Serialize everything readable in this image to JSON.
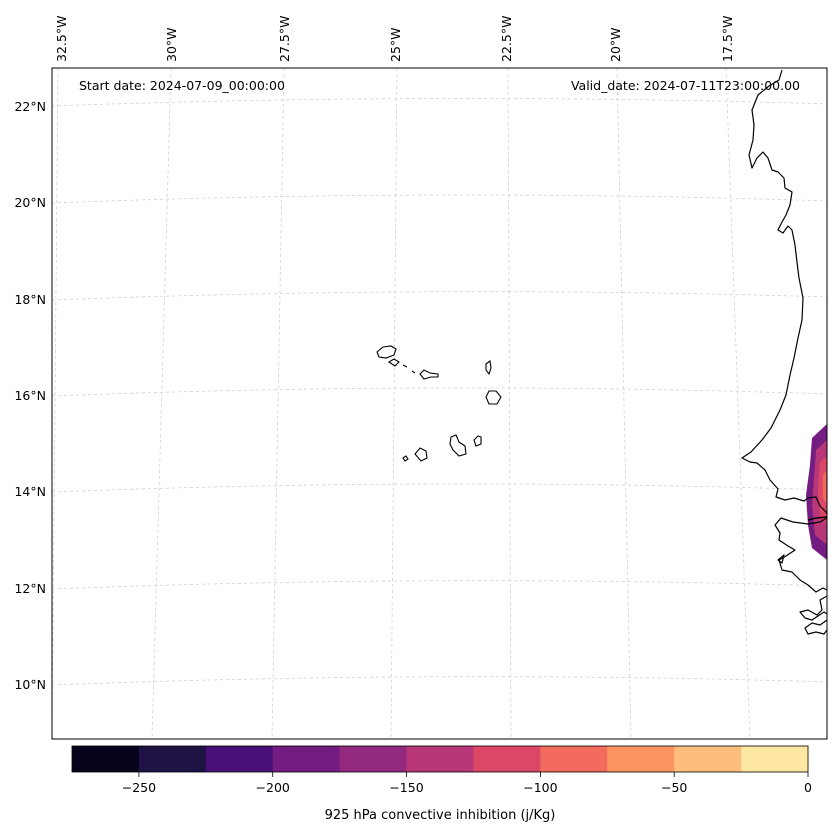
{
  "map": {
    "start_date": "Start date: 2024-07-09_00:00:00",
    "valid_date": "Valid_date: 2024-07-11T23:00:00.00",
    "lon_labels": [
      "32.5°W",
      "30°W",
      "27.5°W",
      "25°W",
      "22.5°W",
      "20°W",
      "17.5°W"
    ],
    "lat_labels": [
      "22°N",
      "20°N",
      "18°N",
      "16°N",
      "14°N",
      "12°N",
      "10°N"
    ]
  },
  "colorbar": {
    "title": "925 hPa convective inhibition (j/Kg)",
    "ticks": [
      "−250",
      "−200",
      "−150",
      "−100",
      "−50",
      "0"
    ],
    "colors": [
      "#05041c",
      "#1f1245",
      "#4a0f78",
      "#741c81",
      "#942a80",
      "#b73779",
      "#dc4768",
      "#f26b5c",
      "#fc9462",
      "#febd7c",
      "#fde7a3"
    ]
  },
  "colors": {
    "coastline": "#000000",
    "grid": "#cfcfcf",
    "frame": "#000000"
  }
}
